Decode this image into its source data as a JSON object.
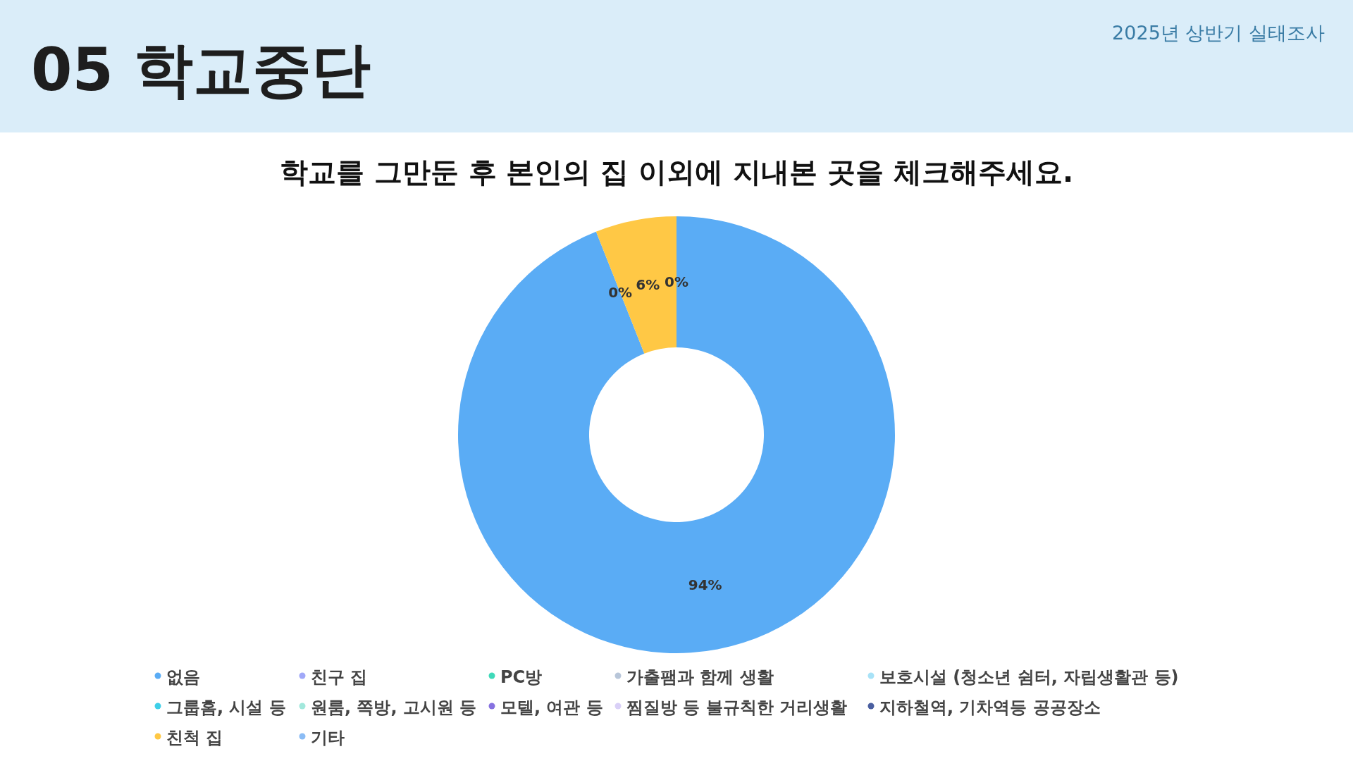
{
  "chart_data": {
    "type": "donut",
    "title": "학교를 그만둔 후 본인의 집 이외에 지내본 곳을 체크해주세요.",
    "annotations": [
      "05 학교중단",
      "2025년 상반기 실태조사"
    ],
    "categories": [
      "없음",
      "친구 집",
      "PC방",
      "가출팸과 함께 생활",
      "보호시설 (청소년 쉼터, 자립생활관 등)",
      "그룹홈, 시설 등",
      "원룸, 쪽방, 고시원 등",
      "모텔, 여관 등",
      "찜질방 등 불규칙한 거리생활",
      "지하철역, 기차역등 공공장소",
      "친척 집",
      "기타"
    ],
    "values": [
      94,
      0,
      0,
      0,
      0,
      0,
      0,
      0,
      0,
      0,
      6,
      0
    ],
    "value_labels": [
      "94%",
      null,
      null,
      null,
      null,
      null,
      null,
      null,
      null,
      "0%",
      "6%",
      "0%"
    ],
    "colors": [
      "#5aacf5",
      "#a0a8f8",
      "#3fd9b9",
      "#b8c6d9",
      "#a8e2f7",
      "#3ecfe8",
      "#a2e8dc",
      "#8671e0",
      "#d9d0f7",
      "#4a5fa0",
      "#ffc845",
      "#8bbcf5"
    ],
    "legend": "bottom"
  }
}
